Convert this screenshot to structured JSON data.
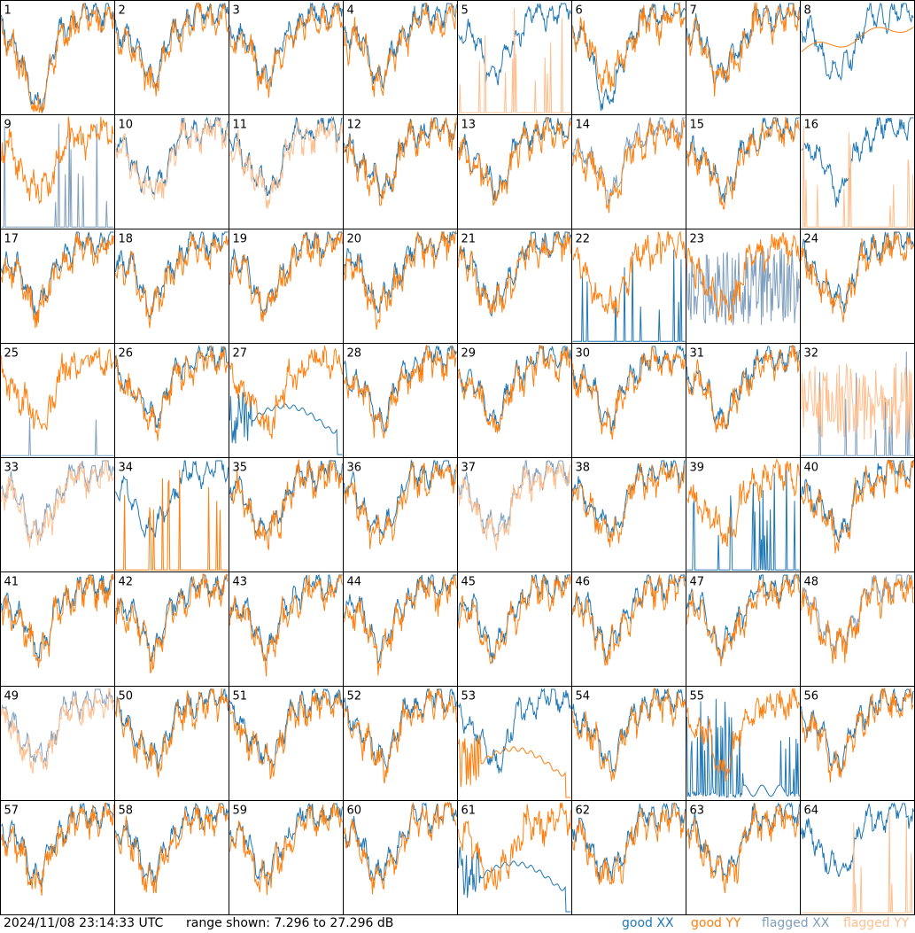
{
  "footer": {
    "timestamp": "2024/11/08 23:14:33 UTC",
    "range_text": "range shown: 7.296 to 27.296 dB"
  },
  "legend": [
    {
      "word": "good",
      "pol": "XX",
      "color": "#1f77b4"
    },
    {
      "word": "good",
      "pol": "YY",
      "color": "#ff7f0e"
    },
    {
      "word": "flagged",
      "pol": "XX",
      "color": "#7f9fbf"
    },
    {
      "word": "flagged",
      "pol": "YY",
      "color": "#ffbf8f"
    }
  ],
  "colors": {
    "good_xx": "#1f77b4",
    "good_yy": "#ff7f0e",
    "flagged_xx": "#7f9fbf",
    "flagged_yy": "#ffbf8f"
  },
  "chart_data": {
    "type": "line",
    "grid": "8x8 small multiples of per-tile spectra",
    "ylim": [
      7.296,
      27.296
    ],
    "yunit": "dB",
    "series_names": [
      "good XX",
      "good YY",
      "flagged XX",
      "flagged YY"
    ],
    "panels": [
      {
        "label": "1",
        "xx": "good",
        "yy": "good",
        "shape": "dip_early"
      },
      {
        "label": "2",
        "xx": "good",
        "yy": "good",
        "shape": "normal"
      },
      {
        "label": "3",
        "xx": "good",
        "yy": "good",
        "shape": "normal"
      },
      {
        "label": "4",
        "xx": "good",
        "yy": "good",
        "shape": "normal"
      },
      {
        "label": "5",
        "xx": "good",
        "yy": "flagged",
        "shape": "spikes_yy"
      },
      {
        "label": "6",
        "xx": "good",
        "yy": "good",
        "shape": "dip_xx"
      },
      {
        "label": "7",
        "xx": "good",
        "yy": "good",
        "shape": "normal"
      },
      {
        "label": "8",
        "xx": "good",
        "yy": "good",
        "shape": "smooth_yy"
      },
      {
        "label": "9",
        "xx": "flagged",
        "yy": "good",
        "shape": "spikes_xx"
      },
      {
        "label": "10",
        "xx": "good",
        "yy": "flagged",
        "shape": "normal"
      },
      {
        "label": "11",
        "xx": "good",
        "yy": "flagged",
        "shape": "normal"
      },
      {
        "label": "12",
        "xx": "good",
        "yy": "good",
        "shape": "normal"
      },
      {
        "label": "13",
        "xx": "good",
        "yy": "good",
        "shape": "normal"
      },
      {
        "label": "14",
        "xx": "flagged",
        "yy": "good",
        "shape": "normal"
      },
      {
        "label": "15",
        "xx": "good",
        "yy": "good",
        "shape": "normal"
      },
      {
        "label": "16",
        "xx": "good",
        "yy": "flagged",
        "shape": "spikes_yy"
      },
      {
        "label": "17",
        "xx": "good",
        "yy": "good",
        "shape": "normal"
      },
      {
        "label": "18",
        "xx": "good",
        "yy": "good",
        "shape": "normal"
      },
      {
        "label": "19",
        "xx": "good",
        "yy": "good",
        "shape": "normal"
      },
      {
        "label": "20",
        "xx": "good",
        "yy": "good",
        "shape": "normal"
      },
      {
        "label": "21",
        "xx": "good",
        "yy": "good",
        "shape": "normal"
      },
      {
        "label": "22",
        "xx": "good",
        "yy": "good",
        "shape": "spikes_xx"
      },
      {
        "label": "23",
        "xx": "flagged",
        "yy": "good",
        "shape": "noisy_xx"
      },
      {
        "label": "24",
        "xx": "good",
        "yy": "good",
        "shape": "normal"
      },
      {
        "label": "25",
        "xx": "flagged",
        "yy": "good",
        "shape": "spikes_xx_sparse"
      },
      {
        "label": "26",
        "xx": "good",
        "yy": "good",
        "shape": "normal"
      },
      {
        "label": "27",
        "xx": "good",
        "yy": "good",
        "shape": "weird_xx"
      },
      {
        "label": "28",
        "xx": "good",
        "yy": "good",
        "shape": "normal"
      },
      {
        "label": "29",
        "xx": "good",
        "yy": "good",
        "shape": "normal"
      },
      {
        "label": "30",
        "xx": "good",
        "yy": "good",
        "shape": "normal"
      },
      {
        "label": "31",
        "xx": "good",
        "yy": "good",
        "shape": "normal"
      },
      {
        "label": "32",
        "xx": "flagged",
        "yy": "flagged",
        "shape": "noisy_both"
      },
      {
        "label": "33",
        "xx": "flagged",
        "yy": "flagged",
        "shape": "normal"
      },
      {
        "label": "34",
        "xx": "good",
        "yy": "good",
        "shape": "spikes_yy"
      },
      {
        "label": "35",
        "xx": "good",
        "yy": "good",
        "shape": "normal"
      },
      {
        "label": "36",
        "xx": "good",
        "yy": "good",
        "shape": "normal"
      },
      {
        "label": "37",
        "xx": "flagged",
        "yy": "flagged",
        "shape": "normal"
      },
      {
        "label": "38",
        "xx": "good",
        "yy": "good",
        "shape": "normal"
      },
      {
        "label": "39",
        "xx": "good",
        "yy": "good",
        "shape": "spikes_xx"
      },
      {
        "label": "40",
        "xx": "good",
        "yy": "good",
        "shape": "normal"
      },
      {
        "label": "41",
        "xx": "good",
        "yy": "good",
        "shape": "normal"
      },
      {
        "label": "42",
        "xx": "good",
        "yy": "good",
        "shape": "normal"
      },
      {
        "label": "43",
        "xx": "good",
        "yy": "good",
        "shape": "normal"
      },
      {
        "label": "44",
        "xx": "good",
        "yy": "good",
        "shape": "normal"
      },
      {
        "label": "45",
        "xx": "good",
        "yy": "good",
        "shape": "normal"
      },
      {
        "label": "46",
        "xx": "good",
        "yy": "good",
        "shape": "normal"
      },
      {
        "label": "47",
        "xx": "good",
        "yy": "good",
        "shape": "normal"
      },
      {
        "label": "48",
        "xx": "flagged",
        "yy": "good",
        "shape": "normal"
      },
      {
        "label": "49",
        "xx": "flagged",
        "yy": "flagged",
        "shape": "normal"
      },
      {
        "label": "50",
        "xx": "good",
        "yy": "good",
        "shape": "normal"
      },
      {
        "label": "51",
        "xx": "good",
        "yy": "good",
        "shape": "normal"
      },
      {
        "label": "52",
        "xx": "good",
        "yy": "good",
        "shape": "normal"
      },
      {
        "label": "53",
        "xx": "good",
        "yy": "good",
        "shape": "weird_yy"
      },
      {
        "label": "54",
        "xx": "good",
        "yy": "good",
        "shape": "normal"
      },
      {
        "label": "55",
        "xx": "good",
        "yy": "good",
        "shape": "spikes_xx_dense"
      },
      {
        "label": "56",
        "xx": "good",
        "yy": "good",
        "shape": "normal"
      },
      {
        "label": "57",
        "xx": "good",
        "yy": "good",
        "shape": "normal"
      },
      {
        "label": "58",
        "xx": "good",
        "yy": "good",
        "shape": "normal"
      },
      {
        "label": "59",
        "xx": "good",
        "yy": "good",
        "shape": "normal"
      },
      {
        "label": "60",
        "xx": "good",
        "yy": "good",
        "shape": "normal"
      },
      {
        "label": "61",
        "xx": "good",
        "yy": "good",
        "shape": "weird_xx2"
      },
      {
        "label": "62",
        "xx": "good",
        "yy": "good",
        "shape": "normal"
      },
      {
        "label": "63",
        "xx": "good",
        "yy": "good",
        "shape": "normal"
      },
      {
        "label": "64",
        "xx": "good",
        "yy": "flagged",
        "shape": "spikes_yy"
      }
    ]
  }
}
